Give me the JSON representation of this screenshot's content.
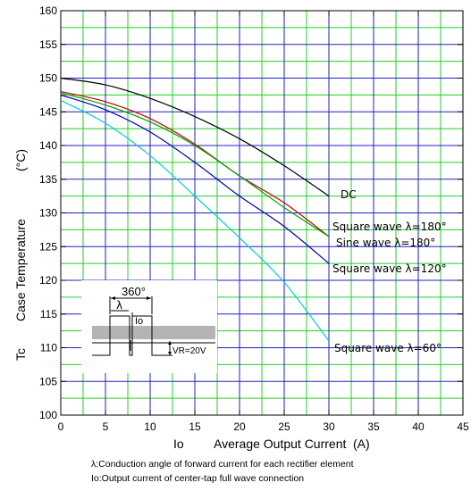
{
  "chart_data": {
    "type": "line",
    "xlabel": "Average Output Current",
    "xlabel_symbol": "Io",
    "xlabel_unit": "(A)",
    "ylabel": "Case Temperature",
    "ylabel_symbol": "Tc",
    "ylabel_unit": "(°C)",
    "xlim": [
      0,
      45
    ],
    "ylim": [
      100,
      160
    ],
    "x_major_ticks": [
      0,
      5,
      10,
      15,
      20,
      25,
      30,
      35,
      40,
      45
    ],
    "x_tick_labels": [
      "0",
      "5",
      "10",
      "15",
      "20",
      "25",
      "30",
      "35",
      "40",
      "45"
    ],
    "y_major_ticks": [
      100,
      105,
      110,
      115,
      120,
      125,
      130,
      135,
      140,
      145,
      150,
      155,
      160
    ],
    "y_tick_labels": [
      "100",
      "105",
      "110",
      "115",
      "120",
      "125",
      "130",
      "135",
      "140",
      "145",
      "150",
      "155",
      "160"
    ],
    "grid": true,
    "grid_colors": {
      "major": "#2020c0",
      "minor": "#20d020"
    },
    "series": [
      {
        "name": "DC",
        "label": "DC",
        "color": "#000000",
        "x": [
          0,
          5,
          10,
          15,
          20,
          25,
          30
        ],
        "y": [
          150,
          149,
          147,
          144.3,
          141,
          137,
          132.5
        ]
      },
      {
        "name": "Square wave λ=180°",
        "label": "Square wave  λ=180°",
        "color": "#c00000",
        "x": [
          0,
          5,
          10,
          15,
          20,
          25,
          30
        ],
        "y": [
          148,
          146.5,
          144,
          140.2,
          135.5,
          131.5,
          126.5
        ]
      },
      {
        "name": "Sine wave λ=180°",
        "label": "Sine wave  λ=180°",
        "color": "#00a000",
        "x": [
          0,
          5,
          10,
          15,
          20,
          25,
          30
        ],
        "y": [
          147.8,
          146,
          143.5,
          140,
          135.5,
          130.8,
          126.5
        ]
      },
      {
        "name": "Square wave λ=120°",
        "label": "Square wave  λ=120°",
        "color": "#0000b0",
        "x": [
          0,
          5,
          10,
          15,
          20,
          25,
          30
        ],
        "y": [
          147.5,
          145.3,
          142,
          137.5,
          132.5,
          128,
          122.5
        ]
      },
      {
        "name": "Square wave λ=60°",
        "label": "Square wave  λ=60°",
        "color": "#00d0d0",
        "x": [
          0,
          5,
          10,
          15,
          20,
          25,
          30
        ],
        "y": [
          146.7,
          143.3,
          138.5,
          132.5,
          126.3,
          119.7,
          111
        ]
      }
    ],
    "inset": {
      "period_label": "360°",
      "lambda_label": "λ",
      "io_label": "Io",
      "vr_label": "VR=20V"
    }
  },
  "footnotes": [
    "λ:Conduction angle of forward current for each rectifier element",
    "Io:Output current of center-tap full wave connection"
  ]
}
